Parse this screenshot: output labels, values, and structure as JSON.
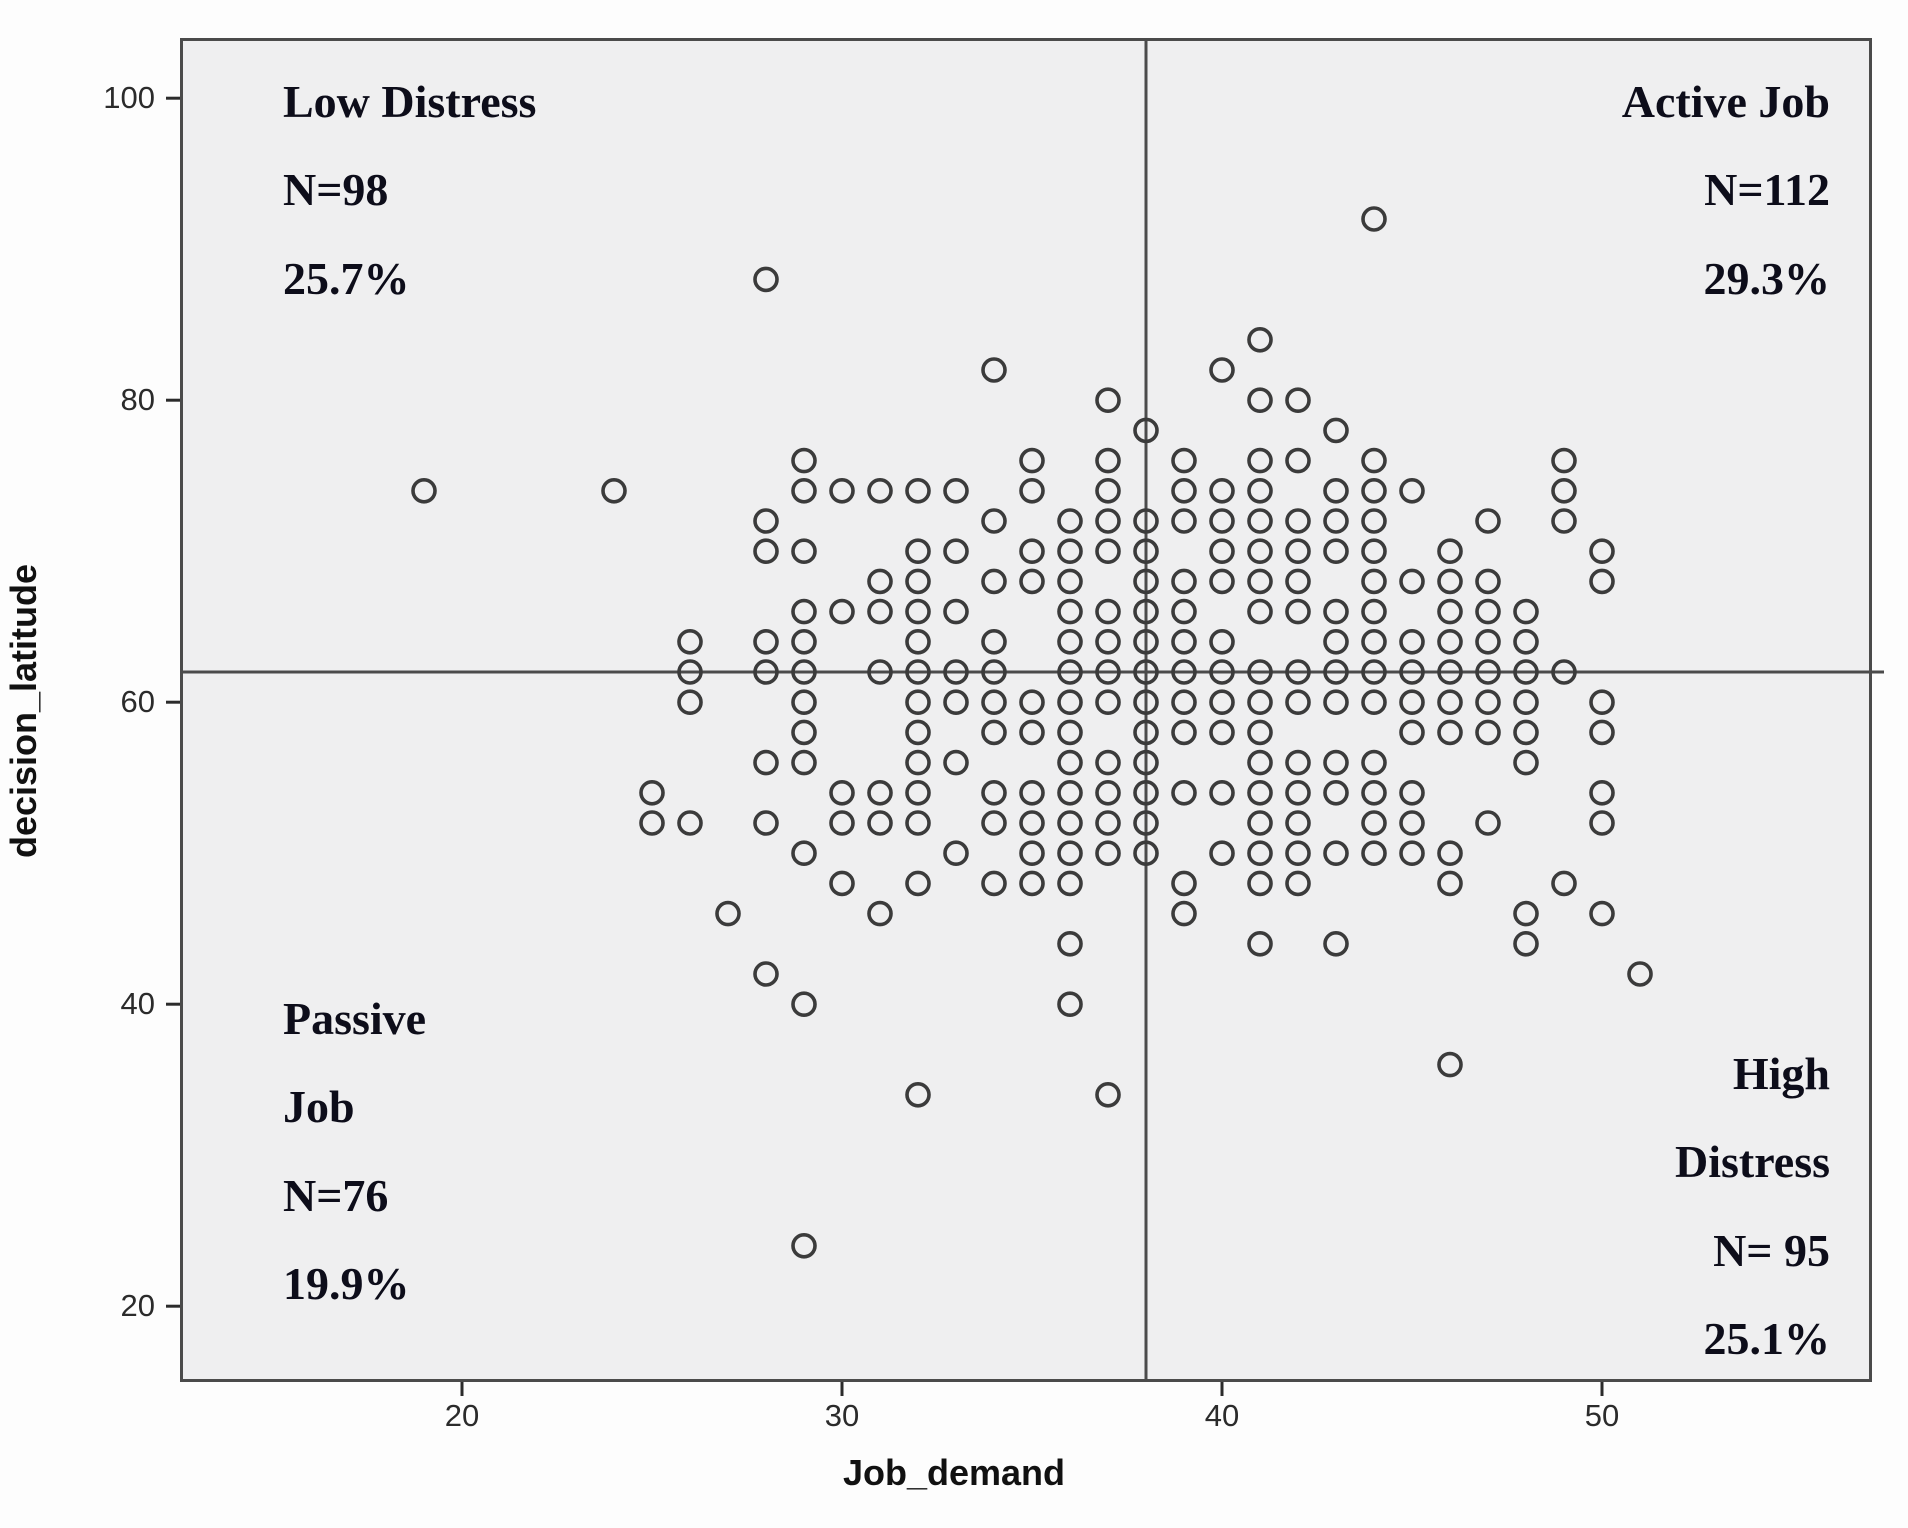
{
  "chart_data": {
    "type": "scatter",
    "title": "",
    "xlabel": "Job_demand",
    "ylabel": "decision_latitude",
    "x_ticks": [
      20,
      30,
      40,
      50
    ],
    "y_ticks": [
      100,
      80,
      60,
      40,
      20
    ],
    "xlim": [
      12.5,
      57.2
    ],
    "ylim": [
      18.5,
      104
    ],
    "grid": false,
    "marker": "open-circle",
    "marker_color": "#3b3b3b",
    "plot_background": "#efeff0",
    "frame_color": "#4b4b4b",
    "reference_line_x": 38,
    "reference_line_y": 62,
    "points": [
      [
        44,
        92
      ],
      [
        28,
        88
      ],
      [
        41,
        84
      ],
      [
        34,
        82
      ],
      [
        40,
        82
      ],
      [
        37,
        80
      ],
      [
        41,
        80
      ],
      [
        42,
        80
      ],
      [
        38,
        78
      ],
      [
        43,
        78
      ],
      [
        29,
        76
      ],
      [
        35,
        76
      ],
      [
        37,
        76
      ],
      [
        39,
        76
      ],
      [
        41,
        76
      ],
      [
        42,
        76
      ],
      [
        44,
        76
      ],
      [
        49,
        76
      ],
      [
        19,
        74
      ],
      [
        24,
        74
      ],
      [
        29,
        74
      ],
      [
        30,
        74
      ],
      [
        31,
        74
      ],
      [
        32,
        74
      ],
      [
        33,
        74
      ],
      [
        35,
        74
      ],
      [
        37,
        74
      ],
      [
        39,
        74
      ],
      [
        40,
        74
      ],
      [
        41,
        74
      ],
      [
        43,
        74
      ],
      [
        44,
        74
      ],
      [
        45,
        74
      ],
      [
        49,
        74
      ],
      [
        28,
        72
      ],
      [
        34,
        72
      ],
      [
        36,
        72
      ],
      [
        37,
        72
      ],
      [
        38,
        72
      ],
      [
        39,
        72
      ],
      [
        40,
        72
      ],
      [
        41,
        72
      ],
      [
        42,
        72
      ],
      [
        43,
        72
      ],
      [
        44,
        72
      ],
      [
        47,
        72
      ],
      [
        49,
        72
      ],
      [
        28,
        70
      ],
      [
        29,
        70
      ],
      [
        32,
        70
      ],
      [
        33,
        70
      ],
      [
        35,
        70
      ],
      [
        36,
        70
      ],
      [
        37,
        70
      ],
      [
        38,
        70
      ],
      [
        40,
        70
      ],
      [
        41,
        70
      ],
      [
        42,
        70
      ],
      [
        43,
        70
      ],
      [
        44,
        70
      ],
      [
        46,
        70
      ],
      [
        50,
        70
      ],
      [
        31,
        68
      ],
      [
        32,
        68
      ],
      [
        34,
        68
      ],
      [
        35,
        68
      ],
      [
        36,
        68
      ],
      [
        38,
        68
      ],
      [
        39,
        68
      ],
      [
        40,
        68
      ],
      [
        41,
        68
      ],
      [
        42,
        68
      ],
      [
        44,
        68
      ],
      [
        45,
        68
      ],
      [
        46,
        68
      ],
      [
        47,
        68
      ],
      [
        50,
        68
      ],
      [
        29,
        66
      ],
      [
        30,
        66
      ],
      [
        31,
        66
      ],
      [
        32,
        66
      ],
      [
        33,
        66
      ],
      [
        36,
        66
      ],
      [
        37,
        66
      ],
      [
        38,
        66
      ],
      [
        39,
        66
      ],
      [
        41,
        66
      ],
      [
        42,
        66
      ],
      [
        43,
        66
      ],
      [
        44,
        66
      ],
      [
        46,
        66
      ],
      [
        47,
        66
      ],
      [
        48,
        66
      ],
      [
        26,
        64
      ],
      [
        28,
        64
      ],
      [
        29,
        64
      ],
      [
        32,
        64
      ],
      [
        34,
        64
      ],
      [
        36,
        64
      ],
      [
        37,
        64
      ],
      [
        38,
        64
      ],
      [
        39,
        64
      ],
      [
        40,
        64
      ],
      [
        43,
        64
      ],
      [
        44,
        64
      ],
      [
        45,
        64
      ],
      [
        46,
        64
      ],
      [
        47,
        64
      ],
      [
        48,
        64
      ],
      [
        26,
        62
      ],
      [
        28,
        62
      ],
      [
        29,
        62
      ],
      [
        31,
        62
      ],
      [
        32,
        62
      ],
      [
        33,
        62
      ],
      [
        34,
        62
      ],
      [
        36,
        62
      ],
      [
        37,
        62
      ],
      [
        38,
        62
      ],
      [
        39,
        62
      ],
      [
        40,
        62
      ],
      [
        41,
        62
      ],
      [
        42,
        62
      ],
      [
        43,
        62
      ],
      [
        44,
        62
      ],
      [
        45,
        62
      ],
      [
        46,
        62
      ],
      [
        47,
        62
      ],
      [
        48,
        62
      ],
      [
        49,
        62
      ],
      [
        26,
        60
      ],
      [
        29,
        60
      ],
      [
        32,
        60
      ],
      [
        33,
        60
      ],
      [
        34,
        60
      ],
      [
        35,
        60
      ],
      [
        36,
        60
      ],
      [
        37,
        60
      ],
      [
        38,
        60
      ],
      [
        39,
        60
      ],
      [
        40,
        60
      ],
      [
        41,
        60
      ],
      [
        42,
        60
      ],
      [
        43,
        60
      ],
      [
        44,
        60
      ],
      [
        45,
        60
      ],
      [
        46,
        60
      ],
      [
        47,
        60
      ],
      [
        48,
        60
      ],
      [
        50,
        60
      ],
      [
        29,
        58
      ],
      [
        32,
        58
      ],
      [
        34,
        58
      ],
      [
        35,
        58
      ],
      [
        36,
        58
      ],
      [
        38,
        58
      ],
      [
        39,
        58
      ],
      [
        40,
        58
      ],
      [
        41,
        58
      ],
      [
        45,
        58
      ],
      [
        46,
        58
      ],
      [
        47,
        58
      ],
      [
        48,
        58
      ],
      [
        50,
        58
      ],
      [
        28,
        56
      ],
      [
        29,
        56
      ],
      [
        32,
        56
      ],
      [
        33,
        56
      ],
      [
        36,
        56
      ],
      [
        37,
        56
      ],
      [
        38,
        56
      ],
      [
        41,
        56
      ],
      [
        42,
        56
      ],
      [
        43,
        56
      ],
      [
        44,
        56
      ],
      [
        48,
        56
      ],
      [
        25,
        54
      ],
      [
        30,
        54
      ],
      [
        31,
        54
      ],
      [
        32,
        54
      ],
      [
        34,
        54
      ],
      [
        35,
        54
      ],
      [
        36,
        54
      ],
      [
        37,
        54
      ],
      [
        38,
        54
      ],
      [
        39,
        54
      ],
      [
        40,
        54
      ],
      [
        41,
        54
      ],
      [
        42,
        54
      ],
      [
        43,
        54
      ],
      [
        44,
        54
      ],
      [
        45,
        54
      ],
      [
        50,
        54
      ],
      [
        25,
        52
      ],
      [
        26,
        52
      ],
      [
        28,
        52
      ],
      [
        30,
        52
      ],
      [
        31,
        52
      ],
      [
        32,
        52
      ],
      [
        34,
        52
      ],
      [
        35,
        52
      ],
      [
        36,
        52
      ],
      [
        37,
        52
      ],
      [
        38,
        52
      ],
      [
        41,
        52
      ],
      [
        42,
        52
      ],
      [
        44,
        52
      ],
      [
        45,
        52
      ],
      [
        47,
        52
      ],
      [
        50,
        52
      ],
      [
        29,
        50
      ],
      [
        33,
        50
      ],
      [
        35,
        50
      ],
      [
        36,
        50
      ],
      [
        37,
        50
      ],
      [
        38,
        50
      ],
      [
        40,
        50
      ],
      [
        41,
        50
      ],
      [
        42,
        50
      ],
      [
        43,
        50
      ],
      [
        44,
        50
      ],
      [
        45,
        50
      ],
      [
        46,
        50
      ],
      [
        30,
        48
      ],
      [
        32,
        48
      ],
      [
        34,
        48
      ],
      [
        35,
        48
      ],
      [
        36,
        48
      ],
      [
        39,
        48
      ],
      [
        41,
        48
      ],
      [
        42,
        48
      ],
      [
        46,
        48
      ],
      [
        49,
        48
      ],
      [
        27,
        46
      ],
      [
        31,
        46
      ],
      [
        39,
        46
      ],
      [
        48,
        46
      ],
      [
        50,
        46
      ],
      [
        36,
        44
      ],
      [
        41,
        44
      ],
      [
        43,
        44
      ],
      [
        48,
        44
      ],
      [
        28,
        42
      ],
      [
        51,
        42
      ],
      [
        29,
        40
      ],
      [
        36,
        40
      ],
      [
        46,
        36
      ],
      [
        32,
        34
      ],
      [
        37,
        34
      ],
      [
        29,
        24
      ]
    ]
  },
  "annotations": {
    "top_left": {
      "text": "Low Distress\nN=98\n25.7%"
    },
    "top_right": {
      "text": "Active Job\nN=112\n29.3%"
    },
    "bottom_left": {
      "text": "Passive\nJob\nN=76\n19.9%"
    },
    "bottom_right": {
      "text": "High\nDistress\nN= 95\n25.1%"
    }
  },
  "axes": {
    "x_label": "Job_demand",
    "y_label": "decision_latitude"
  }
}
